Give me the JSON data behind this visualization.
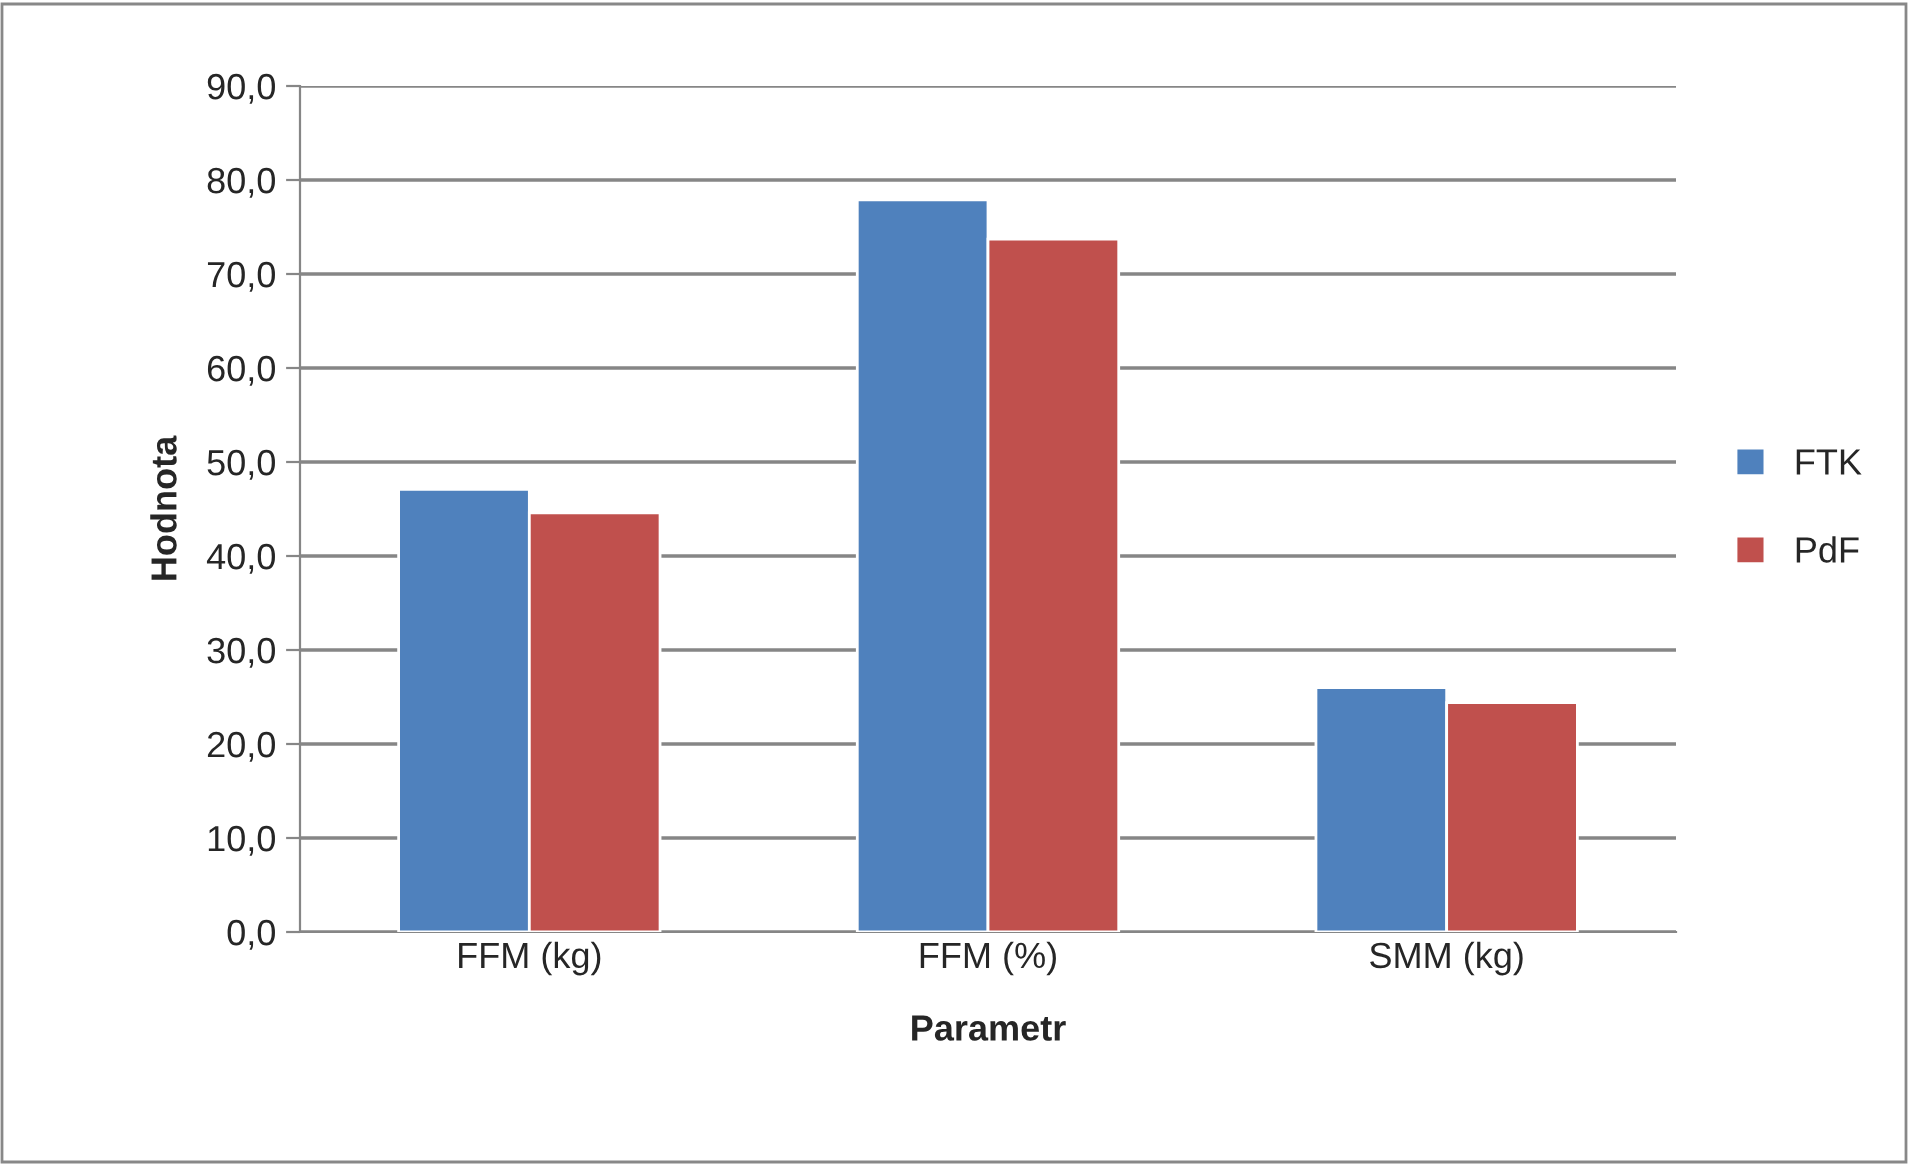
{
  "chart_data": {
    "type": "bar",
    "xlabel": "Parametr",
    "ylabel": "Hodnota",
    "categories": [
      "FFM (kg)",
      "FFM (%)",
      "SMM (kg)"
    ],
    "series": [
      {
        "name": "FTK",
        "color": "#4f81bd",
        "values": [
          47.1,
          77.9,
          26.0
        ]
      },
      {
        "name": "PdF",
        "color": "#c0504d",
        "values": [
          44.6,
          73.7,
          24.4
        ]
      }
    ],
    "ylim": [
      0,
      90
    ],
    "yticks": [
      {
        "value": 0,
        "label": "0,0"
      },
      {
        "value": 10,
        "label": "10,0"
      },
      {
        "value": 20,
        "label": "20,0"
      },
      {
        "value": 30,
        "label": "30,0"
      },
      {
        "value": 40,
        "label": "40,0"
      },
      {
        "value": 50,
        "label": "50,0"
      },
      {
        "value": 60,
        "label": "60,0"
      },
      {
        "value": 70,
        "label": "70,0"
      },
      {
        "value": 80,
        "label": "80,0"
      },
      {
        "value": 90,
        "label": "90,0"
      }
    ],
    "grid": "y",
    "legend": "right"
  }
}
